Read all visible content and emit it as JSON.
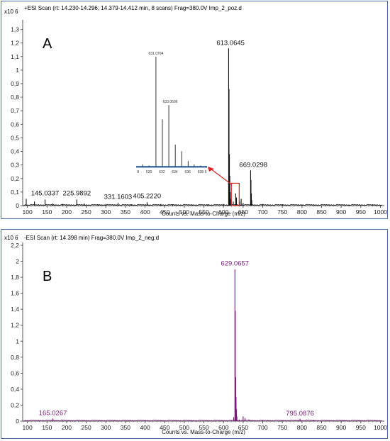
{
  "panels": [
    {
      "id": "A",
      "label": "A",
      "header": "+ESI Scan (rt: 14.230-14.296; 14.379-14.412 min, 8 scans) Frag=380.0V Imp_2_poz.d",
      "scale": "x10 6",
      "xlabel": "Counts vs. Mass-to-Charge (m/z)",
      "color": "#111111",
      "xlim": [
        88,
        1010
      ],
      "ylim": [
        0,
        1.35
      ],
      "yticks": [
        "0",
        "0,1",
        "0,2",
        "0,3",
        "0,4",
        "0,5",
        "0,6",
        "0,7",
        "0,8",
        "0,9",
        "1",
        "1,1",
        "1,2",
        "1,3"
      ],
      "xticks": [
        "100",
        "150",
        "200",
        "250",
        "300",
        "350",
        "400",
        "450",
        "500",
        "550",
        "600",
        "650",
        "700",
        "750",
        "800",
        "850",
        "900",
        "950",
        "1000"
      ],
      "annotations": [
        "145.0337",
        "225.9892",
        "331.1603",
        "405.2220",
        "613.0645",
        "669.0298"
      ],
      "inset": {
        "ticks": [
          "8",
          "630",
          "632",
          "634",
          "636",
          "638",
          "6"
        ],
        "labels": [
          "631.0704",
          "633.0696"
        ]
      }
    },
    {
      "id": "B",
      "label": "B",
      "header": "-ESI Scan (rt: 14.398 min) Frag=380.0V Imp_2_neg.d",
      "scale": "x10 6",
      "xlabel": "Counts vs. Mass-to-Charge (m/z)",
      "color": "#7b1a7b",
      "xlim": [
        88,
        1010
      ],
      "ylim": [
        0,
        2.2
      ],
      "yticks": [
        "0",
        "0,2",
        "0,4",
        "0,6",
        "0,8",
        "1",
        "1,2",
        "1,4",
        "1,6",
        "1,8",
        "2",
        "2,2"
      ],
      "xticks": [
        "100",
        "150",
        "200",
        "250",
        "300",
        "350",
        "400",
        "450",
        "500",
        "550",
        "600",
        "650",
        "700",
        "750",
        "800",
        "850",
        "900",
        "950",
        "1000"
      ],
      "annotations": [
        "165.0267",
        "795.0876",
        "629.0657"
      ]
    }
  ],
  "chart_data": [
    {
      "type": "bar",
      "title": "+ESI Scan (rt: 14.230-14.296; 14.379-14.412 min, 8 scans) Frag=380.0V Imp_2_poz.d",
      "xlabel": "Counts vs. Mass-to-Charge (m/z)",
      "ylabel": "x10 6",
      "xlim": [
        88,
        1010
      ],
      "ylim": [
        0,
        1.35
      ],
      "peaks": [
        {
          "x": 97,
          "y": 0.05
        },
        {
          "x": 118,
          "y": 0.03
        },
        {
          "x": 145.0337,
          "y": 0.045
        },
        {
          "x": 165,
          "y": 0.015
        },
        {
          "x": 190,
          "y": 0.012
        },
        {
          "x": 225.9892,
          "y": 0.045
        },
        {
          "x": 245,
          "y": 0.015
        },
        {
          "x": 280,
          "y": 0.01
        },
        {
          "x": 300,
          "y": 0.012
        },
        {
          "x": 331.1603,
          "y": 0.02
        },
        {
          "x": 365,
          "y": 0.01
        },
        {
          "x": 405.222,
          "y": 0.025
        },
        {
          "x": 440,
          "y": 0.012
        },
        {
          "x": 470,
          "y": 0.01
        },
        {
          "x": 520,
          "y": 0.008
        },
        {
          "x": 560,
          "y": 0.01
        },
        {
          "x": 600,
          "y": 0.012
        },
        {
          "x": 613.0645,
          "y": 1.16
        },
        {
          "x": 614.06,
          "y": 0.86
        },
        {
          "x": 615.06,
          "y": 0.38
        },
        {
          "x": 616.06,
          "y": 0.22
        },
        {
          "x": 617.06,
          "y": 0.1
        },
        {
          "x": 618.06,
          "y": 0.05
        },
        {
          "x": 625,
          "y": 0.03
        },
        {
          "x": 631.0704,
          "y": 0.09
        },
        {
          "x": 633.0696,
          "y": 0.06
        },
        {
          "x": 641,
          "y": 0.03
        },
        {
          "x": 645,
          "y": 0.05
        },
        {
          "x": 650,
          "y": 0.02
        },
        {
          "x": 669.0298,
          "y": 0.26
        },
        {
          "x": 670.03,
          "y": 0.19
        },
        {
          "x": 671.03,
          "y": 0.09
        },
        {
          "x": 672.03,
          "y": 0.04
        },
        {
          "x": 700,
          "y": 0.012
        },
        {
          "x": 750,
          "y": 0.01
        },
        {
          "x": 800,
          "y": 0.008
        },
        {
          "x": 860,
          "y": 0.006
        },
        {
          "x": 920,
          "y": 0.006
        },
        {
          "x": 980,
          "y": 0.005
        }
      ],
      "inset_peaks": [
        {
          "x": 629,
          "y": 0.02
        },
        {
          "x": 630,
          "y": 0.01
        },
        {
          "x": 631.0704,
          "y": 1.0
        },
        {
          "x": 632.07,
          "y": 0.43
        },
        {
          "x": 633.0696,
          "y": 0.56
        },
        {
          "x": 634.07,
          "y": 0.2
        },
        {
          "x": 635.07,
          "y": 0.14
        },
        {
          "x": 636.07,
          "y": 0.05
        },
        {
          "x": 637,
          "y": 0.02
        },
        {
          "x": 638,
          "y": 0.01
        }
      ]
    },
    {
      "type": "bar",
      "title": "-ESI Scan (rt: 14.398 min) Frag=380.0V Imp_2_neg.d",
      "xlabel": "Counts vs. Mass-to-Charge (m/z)",
      "ylabel": "x10 6",
      "xlim": [
        88,
        1010
      ],
      "ylim": [
        0,
        2.2
      ],
      "peaks": [
        {
          "x": 105,
          "y": 0.012
        },
        {
          "x": 130,
          "y": 0.01
        },
        {
          "x": 165.0267,
          "y": 0.035
        },
        {
          "x": 190,
          "y": 0.008
        },
        {
          "x": 230,
          "y": 0.006
        },
        {
          "x": 300,
          "y": 0.005
        },
        {
          "x": 400,
          "y": 0.005
        },
        {
          "x": 500,
          "y": 0.005
        },
        {
          "x": 580,
          "y": 0.006
        },
        {
          "x": 620,
          "y": 0.01
        },
        {
          "x": 626,
          "y": 0.05
        },
        {
          "x": 629.0657,
          "y": 1.9
        },
        {
          "x": 630.07,
          "y": 1.38
        },
        {
          "x": 631.07,
          "y": 0.55
        },
        {
          "x": 632.07,
          "y": 0.3
        },
        {
          "x": 633.07,
          "y": 0.15
        },
        {
          "x": 634.07,
          "y": 0.06
        },
        {
          "x": 640,
          "y": 0.02
        },
        {
          "x": 650,
          "y": 0.06
        },
        {
          "x": 655,
          "y": 0.04
        },
        {
          "x": 665,
          "y": 0.02
        },
        {
          "x": 700,
          "y": 0.01
        },
        {
          "x": 750,
          "y": 0.008
        },
        {
          "x": 795.0876,
          "y": 0.03
        },
        {
          "x": 830,
          "y": 0.008
        },
        {
          "x": 900,
          "y": 0.006
        },
        {
          "x": 970,
          "y": 0.005
        }
      ]
    }
  ]
}
